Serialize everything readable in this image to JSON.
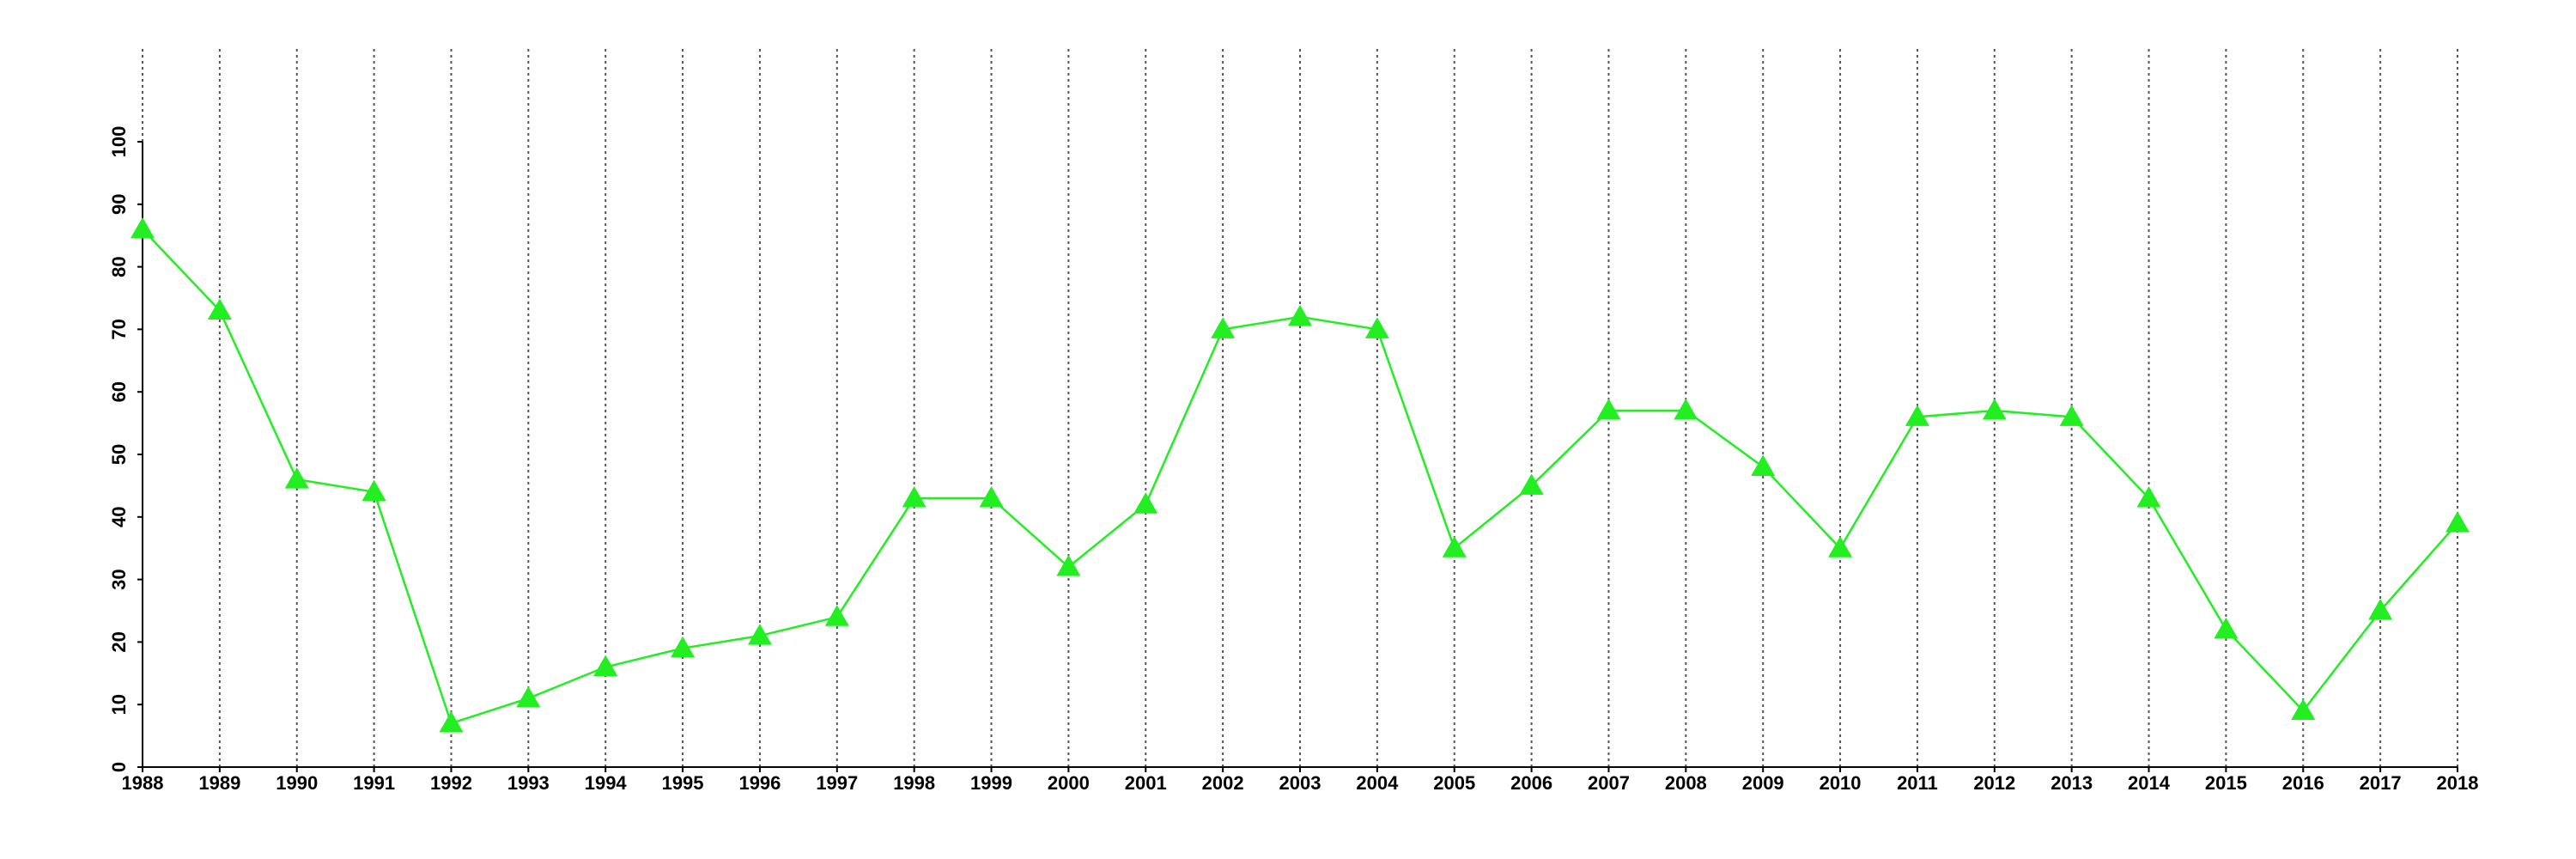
{
  "chart_data": {
    "type": "line",
    "x": [
      1988,
      1989,
      1990,
      1991,
      1992,
      1993,
      1994,
      1995,
      1996,
      1997,
      1998,
      1999,
      2000,
      2001,
      2002,
      2003,
      2004,
      2005,
      2006,
      2007,
      2008,
      2009,
      2010,
      2011,
      2012,
      2013,
      2014,
      2015,
      2016,
      2017,
      2018
    ],
    "values": [
      86,
      73,
      46,
      44,
      7,
      11,
      16,
      19,
      21,
      24,
      43,
      43,
      32,
      42,
      70,
      72,
      70,
      35,
      45,
      57,
      57,
      48,
      35,
      56,
      57,
      56,
      43,
      22,
      9,
      25,
      39
    ],
    "color": "#22ee22",
    "xlim": [
      1988,
      2018
    ],
    "xticks": [
      1988,
      1989,
      1990,
      1991,
      1992,
      1993,
      1994,
      1995,
      1996,
      1997,
      1998,
      1999,
      2000,
      2001,
      2002,
      2003,
      2004,
      2005,
      2006,
      2007,
      2008,
      2009,
      2010,
      2011,
      2012,
      2013,
      2014,
      2015,
      2016,
      2017,
      2018
    ],
    "ylim": [
      0,
      100
    ],
    "yticks": [
      0,
      10,
      20,
      30,
      40,
      50,
      60,
      70,
      80,
      90,
      100
    ],
    "grid": "x",
    "marker": "triangle"
  }
}
